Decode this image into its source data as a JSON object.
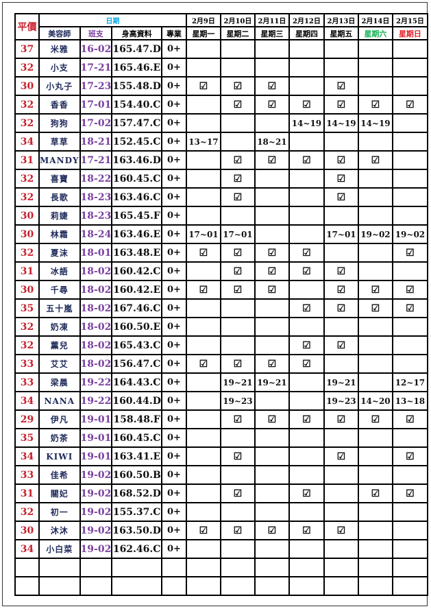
{
  "header": {
    "price": "平價",
    "date_group": "日期",
    "columns": [
      "美容師",
      "班支",
      "身高資料",
      "專業"
    ],
    "dates": [
      "2月9日",
      "2月10日",
      "2月11日",
      "2月12日",
      "2月13日",
      "2月14日",
      "2月15日"
    ],
    "weekdays": [
      "星期一",
      "星期二",
      "星期三",
      "星期四",
      "星期五",
      "星期六",
      "星期日"
    ]
  },
  "colors": {
    "price": "#c8202c",
    "name": "#1f2a5a",
    "shift": "#7a3fa0",
    "date_group": "#00a8e8",
    "saturday": "#10b050",
    "sunday": "#e0202a"
  },
  "check_icon": "☑",
  "rows": [
    {
      "price": "37",
      "name": "米雅",
      "shift": "16-02",
      "height": "165.47.D",
      "pro": "0+",
      "days": [
        "",
        "",
        "",
        "",
        "",
        "",
        ""
      ]
    },
    {
      "price": "32",
      "name": "小支",
      "shift": "17-21",
      "height": "165.46.E",
      "pro": "0+",
      "days": [
        "",
        "",
        "",
        "",
        "",
        "",
        ""
      ]
    },
    {
      "price": "30",
      "name": "小丸子",
      "shift": "17-23",
      "height": "155.48.D",
      "pro": "0+",
      "days": [
        "☑",
        "☑",
        "☑",
        "",
        "☑",
        "",
        ""
      ]
    },
    {
      "price": "32",
      "name": "香香",
      "shift": "17-01",
      "height": "154.40.C",
      "pro": "0+",
      "days": [
        "",
        "☑",
        "☑",
        "☑",
        "☑",
        "☑",
        "☑"
      ]
    },
    {
      "price": "32",
      "name": "狗狗",
      "shift": "17-02",
      "height": "157.47.C",
      "pro": "0+",
      "days": [
        "",
        "",
        "",
        "14~19",
        "14~19",
        "14~19",
        ""
      ]
    },
    {
      "price": "34",
      "name": "草草",
      "shift": "18-21",
      "height": "152.45.C",
      "pro": "0+",
      "days": [
        "13~17",
        "",
        "18~21",
        "",
        "",
        "",
        ""
      ]
    },
    {
      "price": "31",
      "name": "MANDY",
      "shift": "17-21",
      "height": "163.46.D",
      "pro": "0+",
      "days": [
        "",
        "☑",
        "☑",
        "☑",
        "☑",
        "☑",
        ""
      ]
    },
    {
      "price": "32",
      "name": "喜寶",
      "shift": "18-22",
      "height": "160.45.C",
      "pro": "0+",
      "days": [
        "",
        "☑",
        "",
        "",
        "☑",
        "",
        ""
      ]
    },
    {
      "price": "32",
      "name": "長歌",
      "shift": "18-23",
      "height": "163.46.C",
      "pro": "0+",
      "days": [
        "",
        "☑",
        "",
        "",
        "☑",
        "",
        ""
      ]
    },
    {
      "price": "30",
      "name": "莉婕",
      "shift": "18-23",
      "height": "165.45.F",
      "pro": "0+",
      "days": [
        "",
        "",
        "",
        "",
        "",
        "",
        ""
      ]
    },
    {
      "price": "30",
      "name": "林霜",
      "shift": "18-24",
      "height": "163.46.E",
      "pro": "0+",
      "days": [
        "17~01",
        "17~01",
        "",
        "",
        "17~01",
        "19~02",
        "19~02"
      ]
    },
    {
      "price": "32",
      "name": "夏沫",
      "shift": "18-01",
      "height": "163.48.E",
      "pro": "0+",
      "days": [
        "☑",
        "☑",
        "☑",
        "☑",
        "",
        "",
        "☑"
      ]
    },
    {
      "price": "31",
      "name": "冰語",
      "shift": "18-02",
      "height": "160.42.C",
      "pro": "0+",
      "days": [
        "",
        "☑",
        "☑",
        "☑",
        "☑",
        "",
        ""
      ]
    },
    {
      "price": "30",
      "name": "千尋",
      "shift": "18-02",
      "height": "160.42.E",
      "pro": "0+",
      "days": [
        "☑",
        "☑",
        "☑",
        "",
        "☑",
        "☑",
        "☑"
      ]
    },
    {
      "price": "35",
      "name": "五十嵐",
      "shift": "18-02",
      "height": "167.46.C",
      "pro": "0+",
      "days": [
        "",
        "",
        "",
        "☑",
        "☑",
        "☑",
        "☑"
      ]
    },
    {
      "price": "32",
      "name": "奶凍",
      "shift": "18-02",
      "height": "160.50.E",
      "pro": "0+",
      "days": [
        "",
        "",
        "",
        "",
        "",
        "",
        ""
      ]
    },
    {
      "price": "32",
      "name": "薰兒",
      "shift": "18-02",
      "height": "165.43.C",
      "pro": "0+",
      "days": [
        "",
        "",
        "",
        "☑",
        "☑",
        "",
        ""
      ]
    },
    {
      "price": "33",
      "name": "艾艾",
      "shift": "18-02",
      "height": "156.47.C",
      "pro": "0+",
      "days": [
        "☑",
        "☑",
        "☑",
        "☑",
        "",
        "",
        ""
      ]
    },
    {
      "price": "33",
      "name": "梁晨",
      "shift": "19-22",
      "height": "164.43.C",
      "pro": "0+",
      "days": [
        "",
        "19~21",
        "19~21",
        "",
        "19~21",
        "",
        "12~17"
      ]
    },
    {
      "price": "34",
      "name": "NANA",
      "shift": "19-22",
      "height": "160.44.D",
      "pro": "0+",
      "days": [
        "",
        "19~23",
        "",
        "",
        "19~23",
        "14~20",
        "13~18"
      ]
    },
    {
      "price": "29",
      "name": "伊凡",
      "shift": "19-01",
      "height": "158.48.F",
      "pro": "0+",
      "days": [
        "",
        "☑",
        "☑",
        "☑",
        "☑",
        "☑",
        "☑"
      ]
    },
    {
      "price": "35",
      "name": "奶茶",
      "shift": "19-01",
      "height": "160.45.C",
      "pro": "0+",
      "days": [
        "",
        "",
        "",
        "",
        "",
        "",
        ""
      ]
    },
    {
      "price": "34",
      "name": "KIWI",
      "shift": "19-01",
      "height": "163.41.E",
      "pro": "0+",
      "days": [
        "",
        "☑",
        "",
        "",
        "☑",
        "",
        "☑"
      ]
    },
    {
      "price": "33",
      "name": "佳希",
      "shift": "19-02",
      "height": "160.50.B",
      "pro": "0+",
      "days": [
        "",
        "",
        "",
        "",
        "",
        "",
        ""
      ]
    },
    {
      "price": "31",
      "name": "關妃",
      "shift": "19-02",
      "height": "168.52.D",
      "pro": "0+",
      "days": [
        "",
        "☑",
        "",
        "☑",
        "",
        "☑",
        "☑"
      ]
    },
    {
      "price": "32",
      "name": "初一",
      "shift": "19-02",
      "height": "155.37.C",
      "pro": "0+",
      "days": [
        "",
        "",
        "",
        "",
        "",
        "",
        ""
      ]
    },
    {
      "price": "30",
      "name": "沐沐",
      "shift": "19-02",
      "height": "163.50.D",
      "pro": "0+",
      "days": [
        "☑",
        "☑",
        "☑",
        "☑",
        "☑",
        "",
        ""
      ]
    },
    {
      "price": "34",
      "name": "小白菜",
      "shift": "19-02",
      "height": "162.46.C",
      "pro": "0+",
      "days": [
        "",
        "",
        "",
        "",
        "",
        "",
        ""
      ]
    }
  ],
  "blank_rows": 2
}
